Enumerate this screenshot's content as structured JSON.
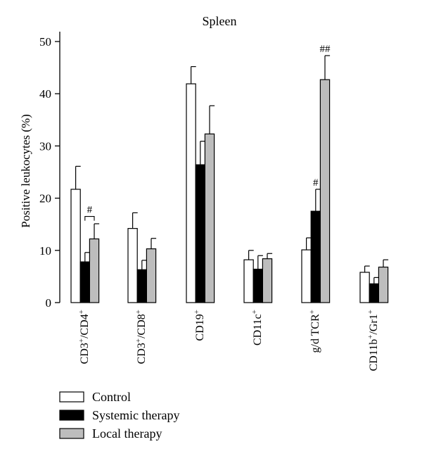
{
  "chart_data": {
    "type": "bar",
    "title": "Spleen",
    "ylabel": "Positive leukocytes (%)",
    "xlabel": "",
    "ylim": [
      0,
      50
    ],
    "yticks": [
      0,
      10,
      20,
      30,
      40,
      50
    ],
    "categories": [
      {
        "base": "CD3",
        "sup1": "+",
        "sep": "/CD4",
        "sup2": "+"
      },
      {
        "base": "CD3",
        "sup1": "+",
        "sep": "/CD8",
        "sup2": "+"
      },
      {
        "base": "CD19",
        "sup1": "+",
        "sep": "",
        "sup2": ""
      },
      {
        "base": "CD11c",
        "sup1": "+",
        "sep": "",
        "sup2": ""
      },
      {
        "base": "g/d TCR",
        "sup1": "+",
        "sep": "",
        "sup2": ""
      },
      {
        "base": "CD11b",
        "sup1": "+",
        "sep": "/Gr1",
        "sup2": "+"
      }
    ],
    "series": [
      {
        "name": "Control",
        "color": "#ffffff",
        "values": [
          21.7,
          14.2,
          41.9,
          8.2,
          10.1,
          5.8
        ],
        "errors": [
          4.4,
          3.0,
          3.3,
          1.8,
          2.3,
          1.2
        ]
      },
      {
        "name": "Systemic therapy",
        "color": "#000000",
        "values": [
          7.8,
          6.3,
          26.4,
          6.4,
          17.5,
          3.6
        ],
        "errors": [
          1.8,
          1.8,
          4.5,
          2.6,
          4.2,
          1.2
        ]
      },
      {
        "name": "Local therapy",
        "color": "#bdbdbd",
        "values": [
          12.2,
          10.3,
          32.3,
          8.4,
          42.7,
          6.8
        ],
        "errors": [
          2.9,
          2.0,
          5.4,
          1.0,
          4.6,
          1.4
        ]
      }
    ],
    "annotations": [
      {
        "text": "#",
        "category": 0,
        "bracket": [
          1,
          2
        ],
        "y": 16.5
      },
      {
        "text": "#",
        "category": 4,
        "series": 1,
        "y": 22.4
      },
      {
        "text": "##",
        "category": 4,
        "series": 2,
        "y": 48.0
      }
    ],
    "legend": {
      "placement": "bottom-left"
    }
  }
}
